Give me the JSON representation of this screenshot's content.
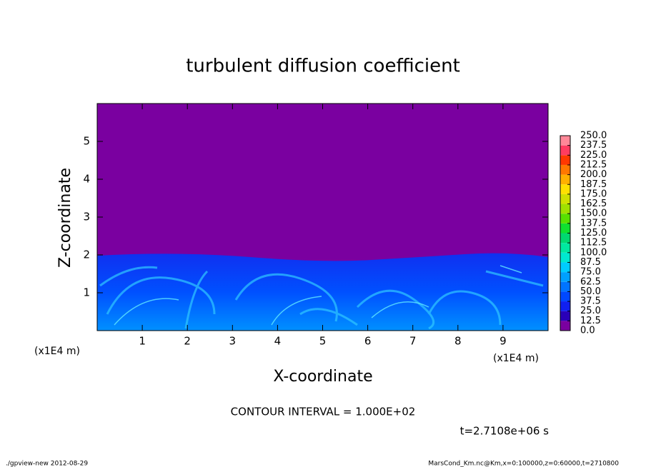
{
  "chart_data": {
    "type": "heatmap",
    "title": "turbulent diffusion coefficient",
    "x_label": "X-coordinate",
    "y_label": "Z-coordinate",
    "x_unit": "(x1E4 m)",
    "y_unit": "(x1E4 m)",
    "xlim": [
      0,
      10
    ],
    "ylim": [
      0,
      6
    ],
    "xticks": [
      1,
      2,
      3,
      4,
      5,
      6,
      7,
      8,
      9
    ],
    "yticks": [
      1,
      2,
      3,
      4,
      5
    ],
    "colorbar": {
      "levels": [
        {
          "value": 0,
          "label": "0.0"
        },
        12.5,
        {
          "value": 25,
          "label": "25.0"
        },
        37.5,
        {
          "value": 50,
          "label": "50.0"
        },
        62.5,
        {
          "value": 75,
          "label": "75.0"
        },
        87.5,
        {
          "value": 100,
          "label": "100.0"
        },
        112.5,
        {
          "value": 125,
          "label": "125.0"
        },
        137.5,
        {
          "value": 150,
          "label": "150.0"
        },
        162.5,
        {
          "value": 175,
          "label": "175.0"
        },
        187.5,
        {
          "value": 200,
          "label": "200.0"
        },
        212.5,
        {
          "value": 225,
          "label": "225.0"
        },
        237.5,
        {
          "value": 250,
          "label": "250.0"
        }
      ],
      "colors": [
        "#7a00a0",
        "#2a00b8",
        "#1020f0",
        "#0048ff",
        "#0074ff",
        "#00a0ff",
        "#00ccff",
        "#00e8d0",
        "#00e8a0",
        "#00d870",
        "#10e030",
        "#58e000",
        "#a0e000",
        "#d0e000",
        "#ffe000",
        "#ffb000",
        "#ff7800",
        "#ff3800",
        "#ff3c60",
        "#ff8898"
      ]
    },
    "contour_interval": "CONTOUR INTERVAL = 1.000E+02",
    "time_label": "t=2.7108e+06 s",
    "footer_left": "./gpview-new  2012-08-29",
    "footer_right": "MarsCond_Km.nc@Km,x=0:100000,z=0:60000,t=2710800"
  }
}
